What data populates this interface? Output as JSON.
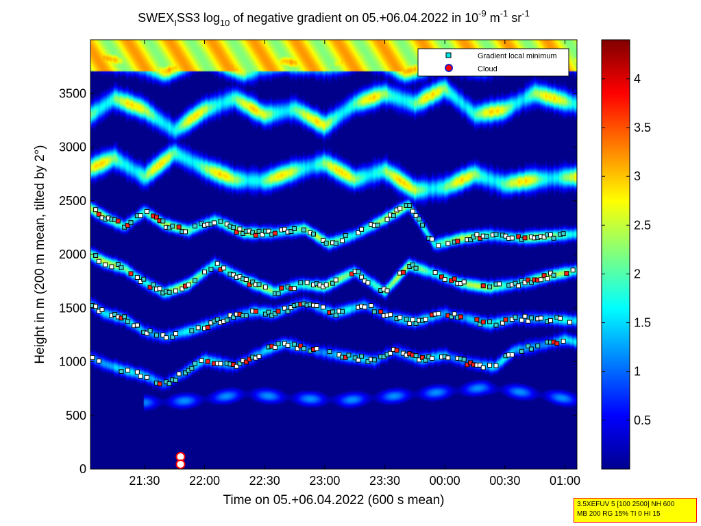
{
  "chart_data": {
    "type": "heatmap",
    "title": {
      "prefix": "SWEX",
      "sub_i": "I",
      "mid1": "SS3 log",
      "sub_10": "10",
      "mid2": " of negative gradient on 05.+06.04.2022 in 10",
      "sup1": "-9",
      "mid3": " m",
      "sup2": "-1",
      "mid4": " sr",
      "sup3": "-1"
    },
    "xlabel": "Time on 05.+06.04.2022 (600 s mean)",
    "ylabel": "Height in m (200 m mean, tilted by 2°)",
    "x_ticks": [
      "21:30",
      "22:00",
      "22:30",
      "23:00",
      "23:30",
      "00:00",
      "00:30",
      "01:00"
    ],
    "x_tick_minutes": [
      90,
      120,
      150,
      180,
      210,
      240,
      270,
      300
    ],
    "xlim_minutes": [
      63,
      306
    ],
    "y_ticks": [
      "0",
      "500",
      "1000",
      "1500",
      "2000",
      "2500",
      "3000",
      "3500"
    ],
    "y_tick_values": [
      0,
      500,
      1000,
      1500,
      2000,
      2500,
      3000,
      3500
    ],
    "ylim": [
      0,
      4000
    ],
    "colorbar": {
      "ticks": [
        "0.5",
        "1",
        "1.5",
        "2",
        "2.5",
        "3",
        "3.5",
        "4"
      ],
      "tick_values": [
        0.5,
        1,
        1.5,
        2,
        2.5,
        3,
        3.5,
        4
      ],
      "range": [
        0,
        4.4
      ],
      "colormap": "jet"
    },
    "legend": {
      "position": "top-right",
      "entries": [
        {
          "label": "Gradient local minimum",
          "marker": "square",
          "color": "#00e5e5"
        },
        {
          "label": "Cloud",
          "marker": "circle",
          "color": "#ff0000"
        }
      ]
    },
    "layers": [
      {
        "name": "L1000",
        "points": [
          [
            63,
            1040
          ],
          [
            70,
            980
          ],
          [
            80,
            920
          ],
          [
            90,
            870
          ],
          [
            100,
            790
          ],
          [
            110,
            900
          ],
          [
            120,
            1020
          ],
          [
            135,
            960
          ],
          [
            150,
            1100
          ],
          [
            160,
            1170
          ],
          [
            175,
            1100
          ],
          [
            190,
            1050
          ],
          [
            205,
            1010
          ],
          [
            215,
            1100
          ],
          [
            228,
            1020
          ],
          [
            240,
            1060
          ],
          [
            250,
            1000
          ],
          [
            265,
            950
          ],
          [
            275,
            1110
          ],
          [
            290,
            1160
          ],
          [
            300,
            1210
          ],
          [
            306,
            1180
          ]
        ]
      },
      {
        "name": "L1500",
        "points": [
          [
            63,
            1540
          ],
          [
            70,
            1450
          ],
          [
            80,
            1400
          ],
          [
            90,
            1280
          ],
          [
            100,
            1230
          ],
          [
            115,
            1300
          ],
          [
            130,
            1400
          ],
          [
            145,
            1470
          ],
          [
            155,
            1450
          ],
          [
            170,
            1550
          ],
          [
            185,
            1450
          ],
          [
            200,
            1530
          ],
          [
            212,
            1420
          ],
          [
            225,
            1370
          ],
          [
            240,
            1450
          ],
          [
            252,
            1400
          ],
          [
            262,
            1350
          ],
          [
            275,
            1400
          ],
          [
            290,
            1400
          ],
          [
            306,
            1380
          ]
        ]
      },
      {
        "name": "L1900",
        "points": [
          [
            63,
            2000
          ],
          [
            70,
            1930
          ],
          [
            80,
            1870
          ],
          [
            90,
            1740
          ],
          [
            100,
            1640
          ],
          [
            112,
            1720
          ],
          [
            125,
            1910
          ],
          [
            140,
            1760
          ],
          [
            155,
            1650
          ],
          [
            168,
            1720
          ],
          [
            180,
            1700
          ],
          [
            195,
            1840
          ],
          [
            210,
            1650
          ],
          [
            222,
            1900
          ],
          [
            235,
            1820
          ],
          [
            248,
            1730
          ],
          [
            262,
            1690
          ],
          [
            278,
            1730
          ],
          [
            292,
            1800
          ],
          [
            306,
            1850
          ]
        ]
      },
      {
        "name": "L2200",
        "points": [
          [
            63,
            2430
          ],
          [
            70,
            2350
          ],
          [
            80,
            2260
          ],
          [
            90,
            2400
          ],
          [
            100,
            2280
          ],
          [
            112,
            2220
          ],
          [
            125,
            2320
          ],
          [
            140,
            2200
          ],
          [
            155,
            2200
          ],
          [
            170,
            2240
          ],
          [
            182,
            2100
          ],
          [
            195,
            2180
          ],
          [
            210,
            2330
          ],
          [
            222,
            2460
          ],
          [
            235,
            2090
          ],
          [
            248,
            2150
          ],
          [
            262,
            2180
          ],
          [
            278,
            2150
          ],
          [
            292,
            2170
          ],
          [
            306,
            2190
          ]
        ]
      },
      {
        "name": "L_UP1",
        "points": [
          [
            63,
            2800
          ],
          [
            75,
            2900
          ],
          [
            90,
            2720
          ],
          [
            105,
            2950
          ],
          [
            120,
            2800
          ],
          [
            135,
            2700
          ],
          [
            150,
            2680
          ],
          [
            165,
            2780
          ],
          [
            180,
            2850
          ],
          [
            195,
            2700
          ],
          [
            210,
            2780
          ],
          [
            225,
            2600
          ],
          [
            240,
            2620
          ],
          [
            255,
            2750
          ],
          [
            270,
            2650
          ],
          [
            285,
            2700
          ],
          [
            306,
            2720
          ]
        ]
      },
      {
        "name": "L_UP2",
        "points": [
          [
            63,
            3300
          ],
          [
            75,
            3450
          ],
          [
            90,
            3350
          ],
          [
            105,
            3150
          ],
          [
            120,
            3350
          ],
          [
            135,
            3450
          ],
          [
            150,
            3300
          ],
          [
            165,
            3350
          ],
          [
            180,
            3200
          ],
          [
            195,
            3400
          ],
          [
            210,
            3500
          ],
          [
            225,
            3400
          ],
          [
            240,
            3550
          ],
          [
            255,
            3300
          ],
          [
            270,
            3350
          ],
          [
            285,
            3500
          ],
          [
            306,
            3400
          ]
        ]
      },
      {
        "name": "L_TOP",
        "points": [
          [
            63,
            3850
          ],
          [
            80,
            3800
          ],
          [
            100,
            3700
          ],
          [
            120,
            3850
          ],
          [
            140,
            3700
          ],
          [
            160,
            3800
          ],
          [
            180,
            3750
          ],
          [
            200,
            3850
          ],
          [
            220,
            3700
          ],
          [
            240,
            3800
          ],
          [
            260,
            3750
          ],
          [
            280,
            3850
          ],
          [
            306,
            3800
          ]
        ]
      }
    ],
    "low_band": {
      "name": "L700",
      "points": [
        [
          95,
          620
        ],
        [
          115,
          640
        ],
        [
          140,
          700
        ],
        [
          165,
          660
        ],
        [
          190,
          640
        ],
        [
          215,
          680
        ],
        [
          240,
          720
        ],
        [
          260,
          760
        ],
        [
          285,
          700
        ],
        [
          306,
          640
        ]
      ]
    },
    "clouds": [
      {
        "x_minutes": 108,
        "y": 115
      },
      {
        "x_minutes": 108,
        "y": 45
      }
    ],
    "gradient_minima_layer_names": [
      "L1000",
      "L1500",
      "L1900",
      "L2200"
    ]
  },
  "stamp": {
    "line1": "3.5XEFUV 5 [100 2500] NH 600",
    "line2": "MB 200 RG 15% TI 0 HI 15"
  }
}
